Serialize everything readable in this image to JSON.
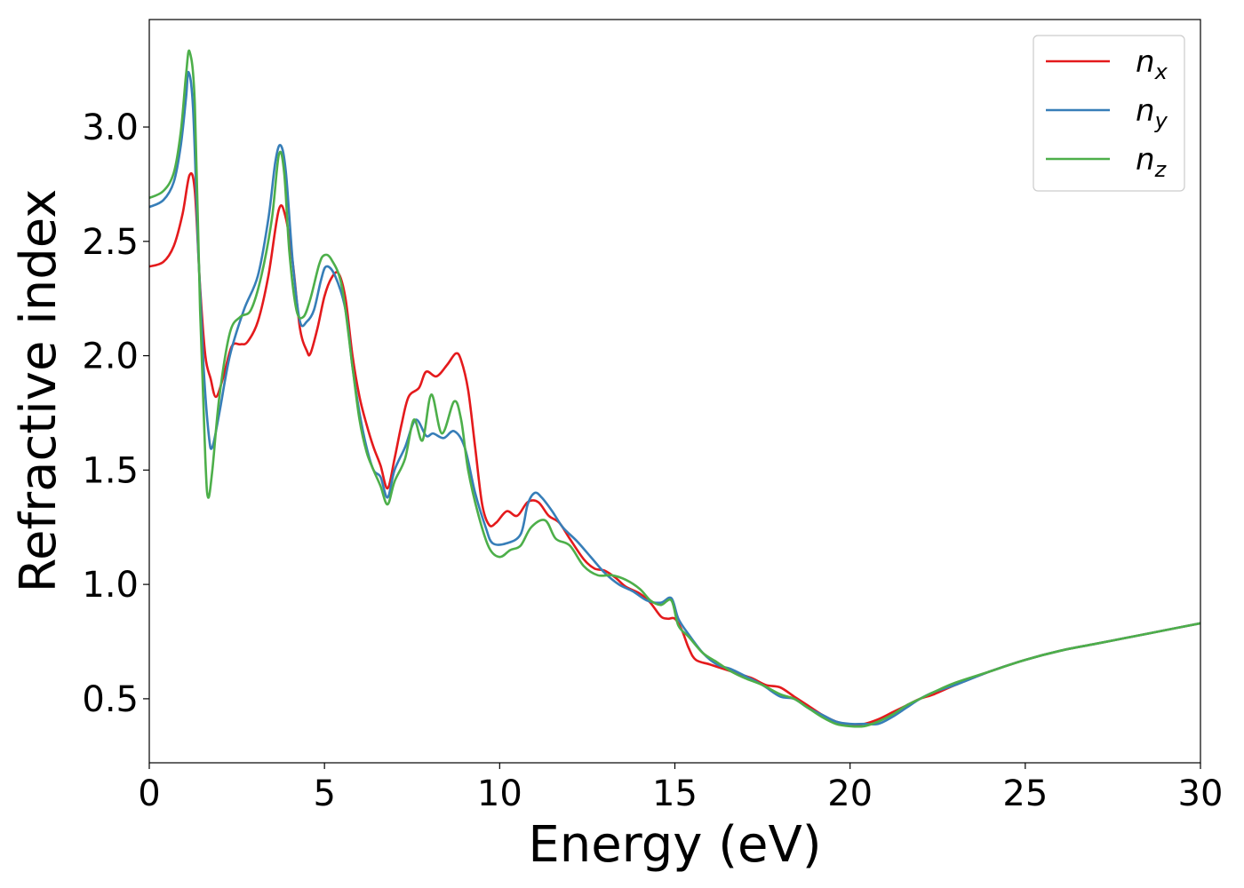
{
  "chart_data": {
    "type": "line",
    "title": "",
    "xlabel": "Energy (eV)",
    "ylabel": "Refractive index",
    "xlim": [
      0,
      30
    ],
    "ylim": [
      0.22,
      3.47
    ],
    "xticks": [
      0,
      5,
      10,
      15,
      20,
      25,
      30
    ],
    "xtick_labels": [
      "0",
      "5",
      "10",
      "15",
      "20",
      "25",
      "30"
    ],
    "yticks": [
      0.5,
      1.0,
      1.5,
      2.0,
      2.5,
      3.0
    ],
    "ytick_labels": [
      "0.5",
      "1.0",
      "1.5",
      "2.0",
      "2.5",
      "3.0"
    ],
    "grid": false,
    "legend_position": "top-right",
    "series": [
      {
        "name": "n_x",
        "legend_base": "n",
        "legend_sub": "x",
        "color": "#e41a1c",
        "points": [
          [
            0,
            2.39
          ],
          [
            0.4,
            2.41
          ],
          [
            0.7,
            2.48
          ],
          [
            0.95,
            2.62
          ],
          [
            1.15,
            2.79
          ],
          [
            1.3,
            2.72
          ],
          [
            1.45,
            2.3
          ],
          [
            1.6,
            2.0
          ],
          [
            1.75,
            1.9
          ],
          [
            1.9,
            1.82
          ],
          [
            2.1,
            1.9
          ],
          [
            2.35,
            2.04
          ],
          [
            2.6,
            2.05
          ],
          [
            2.8,
            2.06
          ],
          [
            3.1,
            2.15
          ],
          [
            3.4,
            2.35
          ],
          [
            3.7,
            2.64
          ],
          [
            3.9,
            2.6
          ],
          [
            4.1,
            2.4
          ],
          [
            4.3,
            2.12
          ],
          [
            4.5,
            2.02
          ],
          [
            4.6,
            2.01
          ],
          [
            4.8,
            2.12
          ],
          [
            5.0,
            2.26
          ],
          [
            5.2,
            2.34
          ],
          [
            5.4,
            2.36
          ],
          [
            5.6,
            2.25
          ],
          [
            5.8,
            2.0
          ],
          [
            6.0,
            1.82
          ],
          [
            6.2,
            1.7
          ],
          [
            6.4,
            1.6
          ],
          [
            6.6,
            1.52
          ],
          [
            6.8,
            1.42
          ],
          [
            7.0,
            1.55
          ],
          [
            7.2,
            1.7
          ],
          [
            7.4,
            1.82
          ],
          [
            7.7,
            1.86
          ],
          [
            7.9,
            1.93
          ],
          [
            8.2,
            1.91
          ],
          [
            8.5,
            1.96
          ],
          [
            8.75,
            2.01
          ],
          [
            8.9,
            1.98
          ],
          [
            9.1,
            1.85
          ],
          [
            9.3,
            1.6
          ],
          [
            9.5,
            1.35
          ],
          [
            9.7,
            1.26
          ],
          [
            9.9,
            1.27
          ],
          [
            10.2,
            1.32
          ],
          [
            10.5,
            1.3
          ],
          [
            10.8,
            1.36
          ],
          [
            11.1,
            1.36
          ],
          [
            11.4,
            1.3
          ],
          [
            11.7,
            1.27
          ],
          [
            12.0,
            1.2
          ],
          [
            12.4,
            1.11
          ],
          [
            12.7,
            1.07
          ],
          [
            13.0,
            1.06
          ],
          [
            13.3,
            1.03
          ],
          [
            13.6,
            0.99
          ],
          [
            14.0,
            0.96
          ],
          [
            14.3,
            0.92
          ],
          [
            14.6,
            0.86
          ],
          [
            14.8,
            0.85
          ],
          [
            15.0,
            0.85
          ],
          [
            15.2,
            0.8
          ],
          [
            15.4,
            0.72
          ],
          [
            15.6,
            0.67
          ],
          [
            16.0,
            0.65
          ],
          [
            16.4,
            0.63
          ],
          [
            16.8,
            0.61
          ],
          [
            17.2,
            0.59
          ],
          [
            17.6,
            0.56
          ],
          [
            18.0,
            0.55
          ],
          [
            18.4,
            0.51
          ],
          [
            18.8,
            0.47
          ],
          [
            19.2,
            0.43
          ],
          [
            19.6,
            0.4
          ],
          [
            20.0,
            0.385
          ],
          [
            20.4,
            0.39
          ],
          [
            20.8,
            0.41
          ],
          [
            21.2,
            0.44
          ],
          [
            21.6,
            0.47
          ],
          [
            22.0,
            0.5
          ],
          [
            22.4,
            0.52
          ],
          [
            23.0,
            0.56
          ],
          [
            24.0,
            0.62
          ],
          [
            25.0,
            0.67
          ],
          [
            26.0,
            0.71
          ],
          [
            27.0,
            0.74
          ],
          [
            28.0,
            0.77
          ],
          [
            29.0,
            0.8
          ],
          [
            30.0,
            0.83
          ]
        ]
      },
      {
        "name": "n_y",
        "legend_base": "n",
        "legend_sub": "y",
        "color": "#377eb8",
        "points": [
          [
            0,
            2.65
          ],
          [
            0.4,
            2.68
          ],
          [
            0.7,
            2.76
          ],
          [
            0.9,
            2.92
          ],
          [
            1.05,
            3.13
          ],
          [
            1.12,
            3.24
          ],
          [
            1.25,
            3.08
          ],
          [
            1.4,
            2.45
          ],
          [
            1.55,
            1.95
          ],
          [
            1.7,
            1.65
          ],
          [
            1.8,
            1.6
          ],
          [
            2.0,
            1.75
          ],
          [
            2.3,
            2.0
          ],
          [
            2.7,
            2.2
          ],
          [
            3.1,
            2.35
          ],
          [
            3.4,
            2.6
          ],
          [
            3.6,
            2.85
          ],
          [
            3.75,
            2.92
          ],
          [
            3.9,
            2.8
          ],
          [
            4.1,
            2.4
          ],
          [
            4.3,
            2.15
          ],
          [
            4.5,
            2.15
          ],
          [
            4.7,
            2.2
          ],
          [
            4.9,
            2.33
          ],
          [
            5.05,
            2.39
          ],
          [
            5.3,
            2.35
          ],
          [
            5.6,
            2.2
          ],
          [
            5.8,
            1.95
          ],
          [
            6.0,
            1.75
          ],
          [
            6.2,
            1.6
          ],
          [
            6.4,
            1.5
          ],
          [
            6.6,
            1.47
          ],
          [
            6.8,
            1.38
          ],
          [
            7.0,
            1.5
          ],
          [
            7.3,
            1.6
          ],
          [
            7.6,
            1.72
          ],
          [
            7.9,
            1.65
          ],
          [
            8.1,
            1.66
          ],
          [
            8.4,
            1.64
          ],
          [
            8.7,
            1.67
          ],
          [
            9.0,
            1.6
          ],
          [
            9.3,
            1.4
          ],
          [
            9.6,
            1.25
          ],
          [
            9.8,
            1.18
          ],
          [
            10.2,
            1.18
          ],
          [
            10.6,
            1.22
          ],
          [
            10.8,
            1.35
          ],
          [
            11.0,
            1.4
          ],
          [
            11.2,
            1.38
          ],
          [
            11.5,
            1.32
          ],
          [
            11.8,
            1.25
          ],
          [
            12.2,
            1.19
          ],
          [
            12.6,
            1.12
          ],
          [
            13.0,
            1.05
          ],
          [
            13.4,
            1.0
          ],
          [
            13.8,
            0.97
          ],
          [
            14.2,
            0.93
          ],
          [
            14.6,
            0.92
          ],
          [
            14.9,
            0.94
          ],
          [
            15.1,
            0.85
          ],
          [
            15.4,
            0.78
          ],
          [
            15.8,
            0.7
          ],
          [
            16.2,
            0.65
          ],
          [
            16.6,
            0.63
          ],
          [
            17.0,
            0.6
          ],
          [
            17.5,
            0.56
          ],
          [
            18.0,
            0.51
          ],
          [
            18.4,
            0.5
          ],
          [
            18.8,
            0.46
          ],
          [
            19.2,
            0.43
          ],
          [
            19.6,
            0.4
          ],
          [
            20.0,
            0.39
          ],
          [
            20.4,
            0.39
          ],
          [
            20.8,
            0.39
          ],
          [
            21.2,
            0.42
          ],
          [
            21.6,
            0.46
          ],
          [
            22.0,
            0.5
          ],
          [
            22.4,
            0.53
          ],
          [
            23.0,
            0.56
          ],
          [
            24.0,
            0.62
          ],
          [
            25.0,
            0.67
          ],
          [
            26.0,
            0.71
          ],
          [
            27.0,
            0.74
          ],
          [
            28.0,
            0.77
          ],
          [
            29.0,
            0.8
          ],
          [
            30.0,
            0.83
          ]
        ]
      },
      {
        "name": "n_z",
        "legend_base": "n",
        "legend_sub": "z",
        "color": "#4daf4a",
        "points": [
          [
            0,
            2.69
          ],
          [
            0.4,
            2.72
          ],
          [
            0.7,
            2.8
          ],
          [
            0.9,
            2.98
          ],
          [
            1.05,
            3.23
          ],
          [
            1.15,
            3.33
          ],
          [
            1.3,
            3.1
          ],
          [
            1.45,
            2.2
          ],
          [
            1.6,
            1.55
          ],
          [
            1.68,
            1.38
          ],
          [
            1.8,
            1.5
          ],
          [
            2.0,
            1.82
          ],
          [
            2.3,
            2.1
          ],
          [
            2.6,
            2.17
          ],
          [
            2.9,
            2.2
          ],
          [
            3.2,
            2.35
          ],
          [
            3.5,
            2.6
          ],
          [
            3.7,
            2.88
          ],
          [
            3.85,
            2.8
          ],
          [
            4.0,
            2.45
          ],
          [
            4.2,
            2.2
          ],
          [
            4.4,
            2.17
          ],
          [
            4.6,
            2.25
          ],
          [
            4.85,
            2.4
          ],
          [
            5.0,
            2.44
          ],
          [
            5.2,
            2.42
          ],
          [
            5.5,
            2.3
          ],
          [
            5.8,
            1.95
          ],
          [
            6.0,
            1.72
          ],
          [
            6.2,
            1.58
          ],
          [
            6.4,
            1.5
          ],
          [
            6.6,
            1.43
          ],
          [
            6.8,
            1.35
          ],
          [
            7.0,
            1.45
          ],
          [
            7.3,
            1.55
          ],
          [
            7.55,
            1.72
          ],
          [
            7.8,
            1.63
          ],
          [
            8.05,
            1.83
          ],
          [
            8.35,
            1.66
          ],
          [
            8.7,
            1.8
          ],
          [
            8.9,
            1.72
          ],
          [
            9.1,
            1.5
          ],
          [
            9.4,
            1.3
          ],
          [
            9.7,
            1.16
          ],
          [
            10.0,
            1.12
          ],
          [
            10.3,
            1.15
          ],
          [
            10.6,
            1.17
          ],
          [
            10.9,
            1.25
          ],
          [
            11.3,
            1.28
          ],
          [
            11.6,
            1.2
          ],
          [
            12.0,
            1.17
          ],
          [
            12.4,
            1.08
          ],
          [
            12.8,
            1.04
          ],
          [
            13.2,
            1.04
          ],
          [
            13.6,
            1.02
          ],
          [
            14.0,
            0.98
          ],
          [
            14.3,
            0.93
          ],
          [
            14.6,
            0.91
          ],
          [
            14.9,
            0.93
          ],
          [
            15.1,
            0.82
          ],
          [
            15.4,
            0.77
          ],
          [
            15.8,
            0.7
          ],
          [
            16.2,
            0.66
          ],
          [
            16.6,
            0.62
          ],
          [
            17.0,
            0.59
          ],
          [
            17.5,
            0.56
          ],
          [
            18.0,
            0.52
          ],
          [
            18.4,
            0.5
          ],
          [
            18.8,
            0.46
          ],
          [
            19.2,
            0.42
          ],
          [
            19.6,
            0.39
          ],
          [
            20.0,
            0.38
          ],
          [
            20.4,
            0.38
          ],
          [
            20.8,
            0.4
          ],
          [
            21.2,
            0.43
          ],
          [
            21.6,
            0.47
          ],
          [
            22.0,
            0.5
          ],
          [
            22.4,
            0.53
          ],
          [
            23.0,
            0.57
          ],
          [
            24.0,
            0.62
          ],
          [
            25.0,
            0.67
          ],
          [
            26.0,
            0.71
          ],
          [
            27.0,
            0.74
          ],
          [
            28.0,
            0.77
          ],
          [
            29.0,
            0.8
          ],
          [
            30.0,
            0.83
          ]
        ]
      }
    ]
  }
}
